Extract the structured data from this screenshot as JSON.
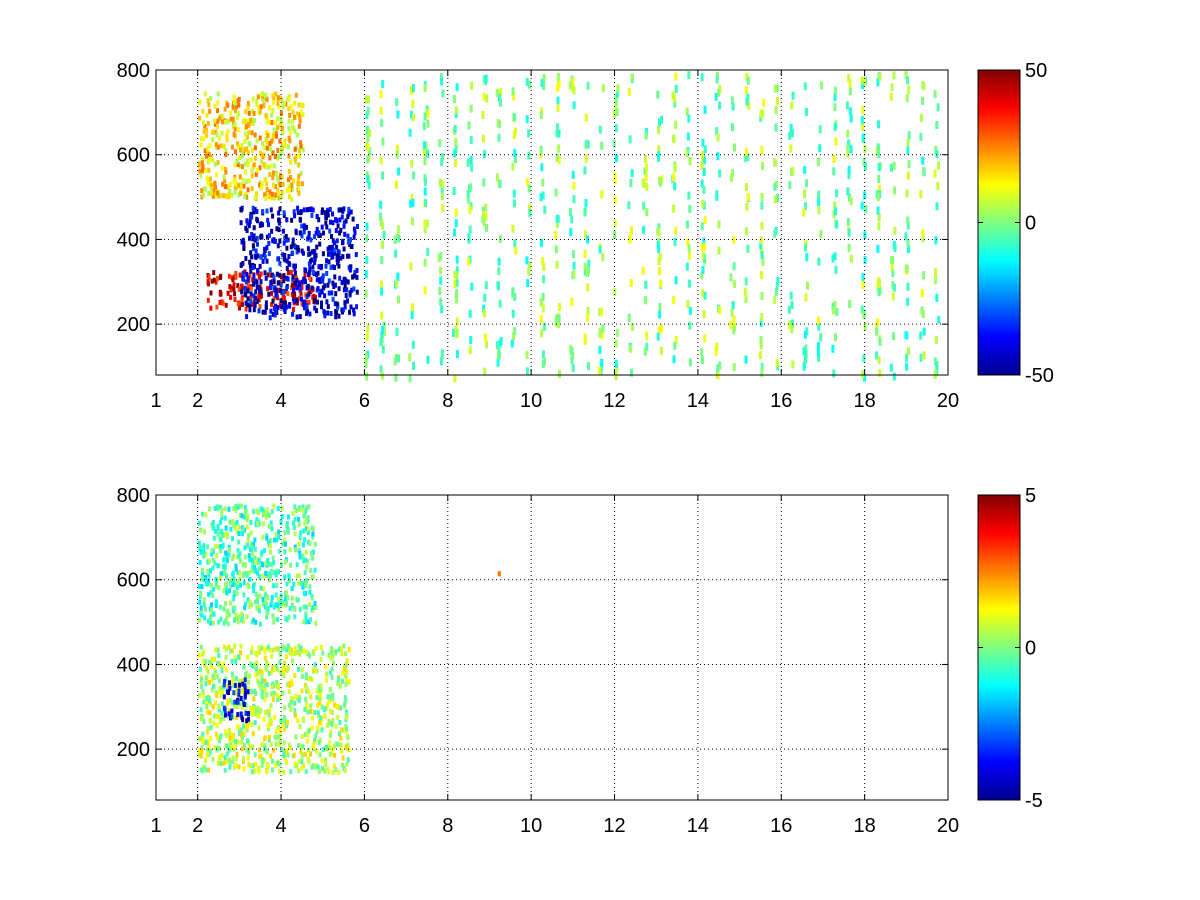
{
  "chart_data": [
    {
      "type": "heatmap",
      "title": "",
      "xlabel": "",
      "ylabel": "",
      "xlim": [
        1,
        20
      ],
      "ylim": [
        80,
        800
      ],
      "grid": true,
      "xticks": [
        1,
        2,
        4,
        6,
        8,
        10,
        12,
        14,
        16,
        18,
        20
      ],
      "xtick_labels": [
        "1",
        "2",
        "4",
        "6",
        "8",
        "10",
        "12",
        "14",
        "16",
        "18",
        "20"
      ],
      "yticks": [
        200,
        400,
        600,
        800
      ],
      "ytick_labels": [
        "200",
        "400",
        "600",
        "800"
      ],
      "colormap": "jet",
      "clim": [
        -50,
        50
      ],
      "colorbar_ticks": [
        -50,
        0,
        50
      ],
      "colorbar_labels": [
        "-50",
        "0",
        "50"
      ],
      "features": [
        {
          "desc": "strong positive band",
          "x": [
            2.2,
            4.8
          ],
          "y": [
            240,
            330
          ],
          "value": 40
        },
        {
          "desc": "negative band",
          "x": [
            3.0,
            5.8
          ],
          "y": [
            220,
            480
          ],
          "value": -42
        },
        {
          "desc": "moderate positive lobe",
          "x": [
            2.0,
            4.5
          ],
          "y": [
            500,
            750
          ],
          "value": 15
        },
        {
          "desc": "sparse near-zero columns",
          "x": [
            6,
            20
          ],
          "y": [
            80,
            800
          ],
          "value": 0
        }
      ]
    },
    {
      "type": "heatmap",
      "title": "",
      "xlabel": "",
      "ylabel": "",
      "xlim": [
        1,
        20
      ],
      "ylim": [
        80,
        800
      ],
      "grid": true,
      "xticks": [
        1,
        2,
        4,
        6,
        8,
        10,
        12,
        14,
        16,
        18,
        20
      ],
      "xtick_labels": [
        "1",
        "2",
        "4",
        "6",
        "8",
        "10",
        "12",
        "14",
        "16",
        "18",
        "20"
      ],
      "yticks": [
        200,
        400,
        600,
        800
      ],
      "ytick_labels": [
        "200",
        "400",
        "600",
        "800"
      ],
      "colormap": "jet",
      "clim": [
        -5,
        5
      ],
      "colorbar_ticks": [
        -5,
        0,
        5
      ],
      "colorbar_labels": [
        "-5",
        "0",
        "5"
      ],
      "features": [
        {
          "desc": "near-zero lower band",
          "x": [
            2.0,
            5.6
          ],
          "y": [
            150,
            450
          ],
          "value": 0.5
        },
        {
          "desc": "near-zero upper lobe",
          "x": [
            2.0,
            4.8
          ],
          "y": [
            500,
            780
          ],
          "value": -0.5
        },
        {
          "desc": "negative patch",
          "x": [
            2.6,
            3.2
          ],
          "y": [
            270,
            370
          ],
          "value": -4
        },
        {
          "desc": "isolated pixel",
          "x": [
            9.2,
            9.2
          ],
          "y": [
            620,
            620
          ],
          "value": 3
        }
      ]
    }
  ]
}
